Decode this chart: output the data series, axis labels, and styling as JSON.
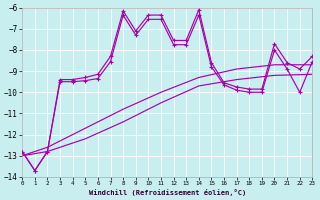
{
  "xlabel": "Windchill (Refroidissement éolien,°C)",
  "bg_color": "#c8eef0",
  "line_color": "#aa00aa",
  "grid_color": "#aadddd",
  "xlim": [
    0,
    23
  ],
  "ylim": [
    -14,
    -6
  ],
  "xticks": [
    0,
    1,
    2,
    3,
    4,
    5,
    6,
    7,
    8,
    9,
    10,
    11,
    12,
    13,
    14,
    15,
    16,
    17,
    18,
    19,
    20,
    21,
    22,
    23
  ],
  "yticks": [
    -14,
    -13,
    -12,
    -11,
    -10,
    -9,
    -8,
    -7,
    -6
  ],
  "curve1_x": [
    0,
    1,
    2,
    3,
    4,
    5,
    6,
    7,
    8,
    9,
    10,
    11,
    12,
    13,
    14,
    15,
    16,
    17,
    18,
    19,
    20,
    21,
    22,
    23
  ],
  "curve1_y": [
    -12.8,
    -13.7,
    -12.8,
    -9.4,
    -9.4,
    -9.3,
    -9.15,
    -8.3,
    -6.15,
    -7.1,
    -6.35,
    -6.35,
    -7.55,
    -7.55,
    -6.1,
    -8.6,
    -9.55,
    -9.75,
    -9.85,
    -9.85,
    -7.7,
    -8.6,
    -8.9,
    -8.3
  ],
  "curve2_x": [
    0,
    1,
    2,
    3,
    4,
    5,
    6,
    7,
    8,
    9,
    10,
    11,
    12,
    13,
    14,
    15,
    16,
    17,
    18,
    19,
    20,
    21,
    22,
    23
  ],
  "curve2_y": [
    -12.8,
    -13.7,
    -12.8,
    -9.5,
    -9.5,
    -9.45,
    -9.35,
    -8.55,
    -6.35,
    -7.3,
    -6.55,
    -6.55,
    -7.75,
    -7.75,
    -6.35,
    -8.8,
    -9.65,
    -9.9,
    -10.0,
    -10.0,
    -8.0,
    -8.9,
    -10.0,
    -8.55
  ],
  "ref1_x": [
    0,
    2,
    5,
    8,
    11,
    14,
    17,
    20,
    23
  ],
  "ref1_y": [
    -13.0,
    -12.6,
    -11.7,
    -10.8,
    -10.0,
    -9.3,
    -8.9,
    -8.7,
    -8.7
  ],
  "ref2_x": [
    0,
    2,
    5,
    8,
    11,
    14,
    17,
    20,
    23
  ],
  "ref2_y": [
    -13.0,
    -12.8,
    -12.2,
    -11.4,
    -10.5,
    -9.7,
    -9.4,
    -9.2,
    -9.15
  ]
}
